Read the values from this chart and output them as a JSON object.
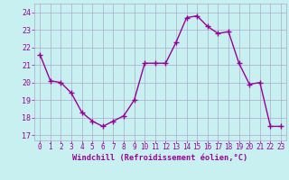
{
  "x": [
    0,
    1,
    2,
    3,
    4,
    5,
    6,
    7,
    8,
    9,
    10,
    11,
    12,
    13,
    14,
    15,
    16,
    17,
    18,
    19,
    20,
    21,
    22,
    23
  ],
  "y": [
    21.6,
    20.1,
    20.0,
    19.4,
    18.3,
    17.8,
    17.5,
    17.8,
    18.1,
    19.0,
    21.1,
    21.1,
    21.1,
    22.3,
    23.7,
    23.8,
    23.2,
    22.8,
    22.9,
    21.1,
    19.9,
    20.0,
    17.5,
    17.5
  ],
  "line_color": "#990099",
  "marker": "+",
  "marker_size": 4,
  "marker_lw": 1.0,
  "bg_color": "#c8f0f0",
  "grid_color": "#aaaacc",
  "ylabel_ticks": [
    17,
    18,
    19,
    20,
    21,
    22,
    23,
    24
  ],
  "xlabel": "Windchill (Refroidissement éolien,°C)",
  "xlim": [
    -0.5,
    23.5
  ],
  "ylim": [
    16.7,
    24.5
  ],
  "tick_color": "#990099",
  "label_color": "#990099",
  "tick_fontsize": 5.5,
  "xlabel_fontsize": 6.2,
  "line_width": 1.0
}
